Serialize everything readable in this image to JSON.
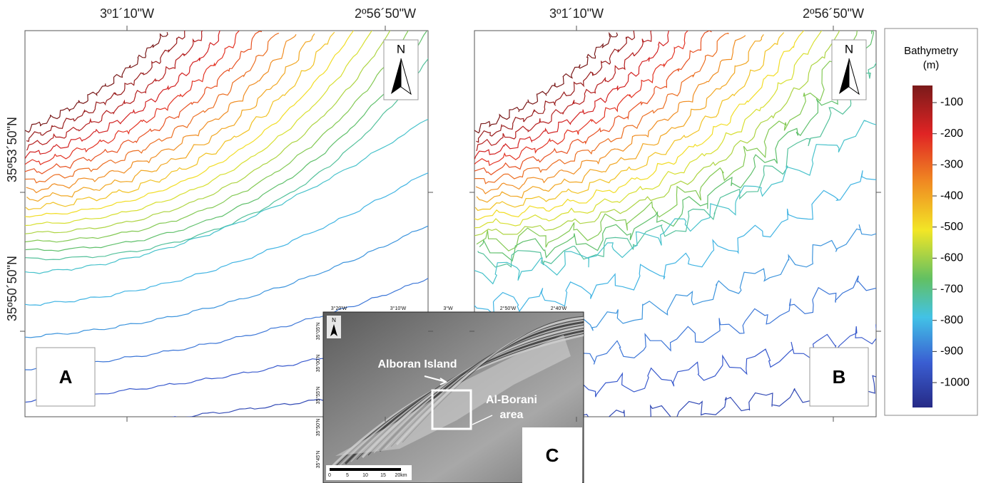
{
  "panels": [
    {
      "label": "A",
      "north": "N",
      "top_labels": [
        "3º1´10\"W",
        "2º56´50\"W"
      ],
      "left_labels": [
        "35º53´50\"N",
        "35º50´50\"N"
      ]
    },
    {
      "label": "B",
      "north": "N",
      "top_labels": [
        "3º1´10\"W",
        "2º56´50\"W"
      ]
    }
  ],
  "legend": {
    "title": "Bathymetry",
    "unit": "(m)",
    "ticks": [
      -100,
      -200,
      -300,
      -400,
      -500,
      -600,
      -700,
      -800,
      -900,
      -1000
    ],
    "range": [
      -45,
      -1080
    ]
  },
  "inset": {
    "label": "C",
    "north": "N",
    "top_labels": [
      "3°20'W",
      "3°10'W",
      "3°W",
      "2°50'W",
      "2°40'W"
    ],
    "left_labels": [
      "35°05'N",
      "35°00'N",
      "35°55'N",
      "35°50'N",
      "35°45'N"
    ],
    "annotations": [
      "Alboran Island",
      "Al-Borani",
      "area"
    ],
    "scale_labels": [
      "0",
      "5",
      "10",
      "15",
      "20km"
    ]
  }
}
